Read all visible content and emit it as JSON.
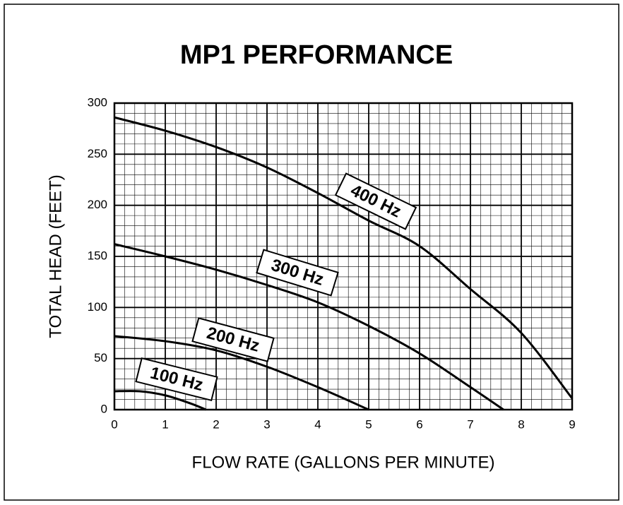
{
  "chart_data": {
    "type": "line",
    "title": "MP1 PERFORMANCE",
    "x_label": "FLOW RATE (GALLONS PER MINUTE)",
    "y_label": "TOTAL HEAD (FEET)",
    "xlim": [
      0,
      9
    ],
    "ylim": [
      0,
      300
    ],
    "xticks": [
      0,
      1,
      2,
      3,
      4,
      5,
      6,
      7,
      8,
      9
    ],
    "yticks": [
      0,
      50,
      100,
      150,
      200,
      250,
      300
    ],
    "grid": true,
    "minor_grid": {
      "x": 0.2,
      "y": 10
    },
    "series": [
      {
        "name": "100 Hz",
        "color": "#000000",
        "x": [
          0,
          0.5,
          1,
          1.5,
          1.8
        ],
        "values": [
          18,
          18,
          14,
          6,
          0
        ]
      },
      {
        "name": "200 Hz",
        "color": "#000000",
        "x": [
          0,
          1,
          2,
          3,
          4,
          5
        ],
        "values": [
          72,
          67,
          58,
          42,
          22,
          0
        ]
      },
      {
        "name": "300 Hz",
        "color": "#000000",
        "x": [
          0,
          1,
          2,
          3,
          4,
          5,
          6,
          7,
          7.65
        ],
        "values": [
          162,
          150,
          137,
          122,
          105,
          82,
          55,
          22,
          0
        ]
      },
      {
        "name": "400 Hz",
        "color": "#000000",
        "x": [
          0,
          1,
          2,
          3,
          4,
          5,
          6,
          7,
          8,
          9
        ],
        "values": [
          286,
          273,
          257,
          237,
          212,
          185,
          160,
          118,
          75,
          11
        ]
      }
    ]
  }
}
